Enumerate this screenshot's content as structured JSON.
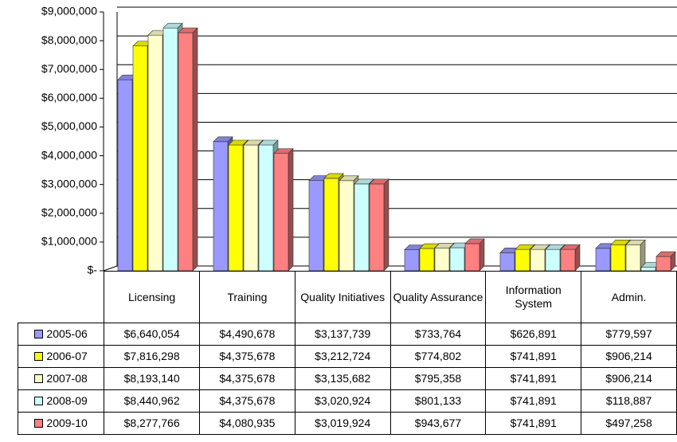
{
  "chart_data": {
    "type": "bar",
    "categories": [
      "Licensing",
      "Training",
      "Quality Initiatives",
      "Quality Assurance",
      "Information System",
      "Admin."
    ],
    "series": [
      {
        "name": "2005-06",
        "color": "#9999ff",
        "values": [
          6640054,
          4490678,
          3137739,
          733764,
          626891,
          779597
        ],
        "value_labels": [
          "$6,640,054",
          "$4,490,678",
          "$3,137,739",
          "$733,764",
          "$626,891",
          "$779,597"
        ]
      },
      {
        "name": "2006-07",
        "color": "#ffff00",
        "values": [
          7816298,
          4375678,
          3212724,
          774802,
          741891,
          906214
        ],
        "value_labels": [
          "$7,816,298",
          "$4,375,678",
          "$3,212,724",
          "$774,802",
          "$741,891",
          "$906,214"
        ]
      },
      {
        "name": "2007-08",
        "color": "#ffffcc",
        "values": [
          8193140,
          4375678,
          3135682,
          795358,
          741891,
          906214
        ],
        "value_labels": [
          "$8,193,140",
          "$4,375,678",
          "$3,135,682",
          "$795,358",
          "$741,891",
          "$906,214"
        ]
      },
      {
        "name": "2008-09",
        "color": "#ccffff",
        "values": [
          8440962,
          4375678,
          3020924,
          801133,
          741891,
          118887
        ],
        "value_labels": [
          "$8,440,962",
          "$4,375,678",
          "$3,020,924",
          "$801,133",
          "$741,891",
          "$118,887"
        ]
      },
      {
        "name": "2009-10",
        "color": "#ff8080",
        "values": [
          8277766,
          4080935,
          3019924,
          943677,
          741891,
          497258
        ],
        "value_labels": [
          "$8,277,766",
          "$4,080,935",
          "$3,019,924",
          "$943,677",
          "$741,891",
          "$497,258"
        ]
      }
    ],
    "ylim": [
      0,
      9000000
    ],
    "yticks": [
      {
        "value": 0,
        "label": "$-"
      },
      {
        "value": 1000000,
        "label": "$1,000,000"
      },
      {
        "value": 2000000,
        "label": "$2,000,000"
      },
      {
        "value": 3000000,
        "label": "$3,000,000"
      },
      {
        "value": 4000000,
        "label": "$4,000,000"
      },
      {
        "value": 5000000,
        "label": "$5,000,000"
      },
      {
        "value": 6000000,
        "label": "$6,000,000"
      },
      {
        "value": 7000000,
        "label": "$7,000,000"
      },
      {
        "value": 8000000,
        "label": "$8,000,000"
      },
      {
        "value": 9000000,
        "label": "$9,000,000"
      }
    ],
    "grid": true
  }
}
